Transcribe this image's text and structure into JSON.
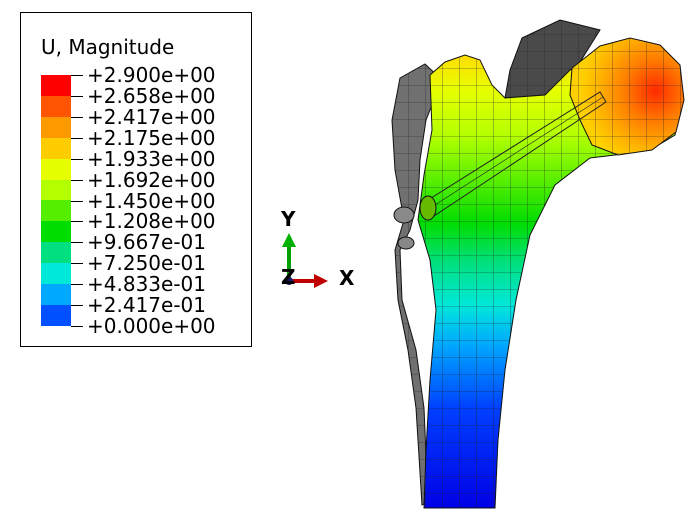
{
  "legend": {
    "title": "U, Magnitude",
    "values": [
      "+2.900e+00",
      "+2.658e+00",
      "+2.417e+00",
      "+2.175e+00",
      "+1.933e+00",
      "+1.692e+00",
      "+1.450e+00",
      "+1.208e+00",
      "+9.667e-01",
      "+7.250e-01",
      "+4.833e-01",
      "+2.417e-01",
      "+0.000e+00"
    ],
    "colors": [
      "#ff0000",
      "#ff5500",
      "#ff9900",
      "#ffcc00",
      "#e6ff00",
      "#b3ff00",
      "#55ee00",
      "#00dd00",
      "#00e080",
      "#00e8d8",
      "#00a8ff",
      "#0050ff",
      "#0000e6"
    ]
  },
  "triad": {
    "y_label": "Y",
    "z_label": "Z",
    "x_label": "X"
  }
}
